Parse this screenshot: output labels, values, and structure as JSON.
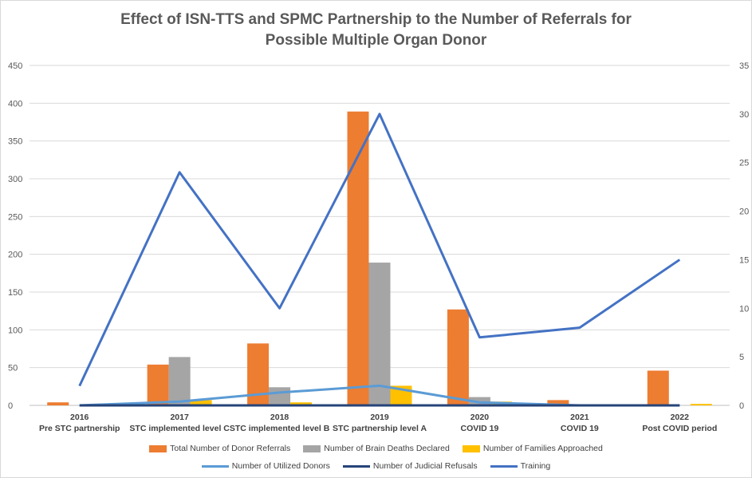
{
  "chart_data": {
    "type": "bar+line",
    "title_lines": [
      "Effect of ISN-TTS and SPMC Partnership to the Number of Referrals for",
      "Possible Multiple Organ Donor"
    ],
    "categories": [
      {
        "year": "2016",
        "label": "Pre STC partnership"
      },
      {
        "year": "2017",
        "label": "STC implemented level C"
      },
      {
        "year": "2018",
        "label": "STC implemented level B"
      },
      {
        "year": "2019",
        "label": "STC partnership level A"
      },
      {
        "year": "2020",
        "label": "COVID 19"
      },
      {
        "year": "2021",
        "label": "COVID 19"
      },
      {
        "year": "2022",
        "label": "Post COVID period"
      }
    ],
    "left_axis": {
      "min": 0,
      "max": 450,
      "step": 50,
      "ticks": [
        "0",
        "50",
        "100",
        "150",
        "200",
        "250",
        "300",
        "350",
        "400",
        "450"
      ]
    },
    "right_axis": {
      "min": 0,
      "max": 35,
      "step": 5,
      "ticks": [
        "0",
        "5",
        "10",
        "15",
        "20",
        "25",
        "30",
        "35"
      ]
    },
    "bar_series": [
      {
        "name": "Total Number of Donor Referrals",
        "color": "#ED7D31",
        "values": [
          4,
          54,
          82,
          389,
          127,
          7,
          46
        ]
      },
      {
        "name": "Number of Brain Deaths Declared",
        "color": "#A5A5A5",
        "values": [
          0,
          64,
          24,
          189,
          11,
          0,
          0
        ]
      },
      {
        "name": "Number of Families Approached",
        "color": "#FFC000",
        "values": [
          0,
          7,
          4,
          26,
          5,
          0,
          2
        ]
      }
    ],
    "line_series": [
      {
        "name": "Number of Utilized Donors",
        "color": "#5B9BD5",
        "axis": "left",
        "values": [
          0,
          5,
          17,
          26,
          4,
          0,
          0
        ]
      },
      {
        "name": "Number of Judicial Refusals",
        "color": "#264478",
        "axis": "left",
        "values": [
          0,
          0,
          0,
          0,
          0,
          0,
          0
        ]
      },
      {
        "name": "Training",
        "color": "#4472C4",
        "axis": "right",
        "values": [
          2,
          24,
          10,
          30,
          7,
          8,
          15
        ]
      }
    ],
    "grid": true,
    "legend_position": "bottom"
  }
}
